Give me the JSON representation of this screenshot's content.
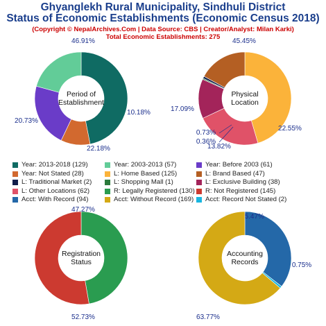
{
  "header": {
    "title_line1": "Ghyanglekh Rural Municipality, Sindhuli District",
    "title_line2": "Status of Economic Establishments (Economic Census 2018)",
    "copyright": "(Copyright © NepalArchives.Com | Data Source: CBS | Creator/Analyst: Milan Karki)",
    "total": "Total Economic Establishments: 275"
  },
  "chart_data": [
    {
      "type": "pie",
      "center_label": [
        "Period of",
        "Establishment"
      ],
      "slices": [
        {
          "name": "Year: 2013-2018",
          "value": 129,
          "percent": "46.91%",
          "color": "#0f6b63"
        },
        {
          "name": "Year: Not Stated",
          "value": 28,
          "percent": "10.18%",
          "color": "#d2692f"
        },
        {
          "name": "Year: Before 2003",
          "value": 61,
          "percent": "22.18%",
          "color": "#6a3cc8"
        },
        {
          "name": "Year: 2003-2013",
          "value": 57,
          "percent": "20.73%",
          "color": "#62cc98"
        }
      ]
    },
    {
      "type": "pie",
      "center_label": [
        "Physical",
        "Location"
      ],
      "slices": [
        {
          "name": "L: Home Based",
          "value": 125,
          "percent": "45.45%",
          "color": "#fbb33a"
        },
        {
          "name": "L: Other Locations",
          "value": 62,
          "percent": "22.55%",
          "color": "#e05268"
        },
        {
          "name": "L: Exclusive Building",
          "value": 38,
          "percent": "13.82%",
          "color": "#a3245a"
        },
        {
          "name": "L: Shopping Mall",
          "value": 1,
          "percent": "0.36%",
          "color": "#2c7a3c"
        },
        {
          "name": "L: Traditional Market",
          "value": 2,
          "percent": "0.73%",
          "color": "#111d4a"
        },
        {
          "name": "L: Brand Based",
          "value": 47,
          "percent": "17.09%",
          "color": "#b45f23"
        }
      ]
    },
    {
      "type": "pie",
      "center_label": [
        "Registration",
        "Status"
      ],
      "slices": [
        {
          "name": "R: Legally Registered",
          "value": 130,
          "percent": "47.27%",
          "color": "#2a9c50"
        },
        {
          "name": "R: Not Registered",
          "value": 145,
          "percent": "52.73%",
          "color": "#cc3a30"
        }
      ]
    },
    {
      "type": "pie",
      "center_label": [
        "Accounting",
        "Records"
      ],
      "slices": [
        {
          "name": "Acct: With Record",
          "value": 94,
          "percent": "35.47%",
          "color": "#2468a8"
        },
        {
          "name": "Acct: Record Not Stated",
          "value": 2,
          "percent": "0.75%",
          "color": "#19b6e0"
        },
        {
          "name": "Acct: Without Record",
          "value": 169,
          "percent": "63.77%",
          "color": "#d4a915"
        }
      ]
    }
  ],
  "legend": [
    {
      "label": "Year: 2013-2018 (129)",
      "color": "#0f6b63"
    },
    {
      "label": "Year: 2003-2013 (57)",
      "color": "#62cc98"
    },
    {
      "label": "Year: Before 2003 (61)",
      "color": "#6a3cc8"
    },
    {
      "label": "Year: Not Stated (28)",
      "color": "#d2692f"
    },
    {
      "label": "L: Home Based (125)",
      "color": "#fbb33a"
    },
    {
      "label": "L: Brand Based (47)",
      "color": "#b45f23"
    },
    {
      "label": "L: Traditional Market (2)",
      "color": "#111d4a"
    },
    {
      "label": "L: Shopping Mall (1)",
      "color": "#2c7a3c"
    },
    {
      "label": "L: Exclusive Building (38)",
      "color": "#a3245a"
    },
    {
      "label": "L: Other Locations (62)",
      "color": "#e05268"
    },
    {
      "label": "R: Legally Registered (130)",
      "color": "#2a9c50"
    },
    {
      "label": "R: Not Registered (145)",
      "color": "#cc3a30"
    },
    {
      "label": "Acct: With Record (94)",
      "color": "#2468a8"
    },
    {
      "label": "Acct: Without Record (169)",
      "color": "#d4a915"
    },
    {
      "label": "Acct: Record Not Stated (2)",
      "color": "#19b6e0"
    }
  ]
}
